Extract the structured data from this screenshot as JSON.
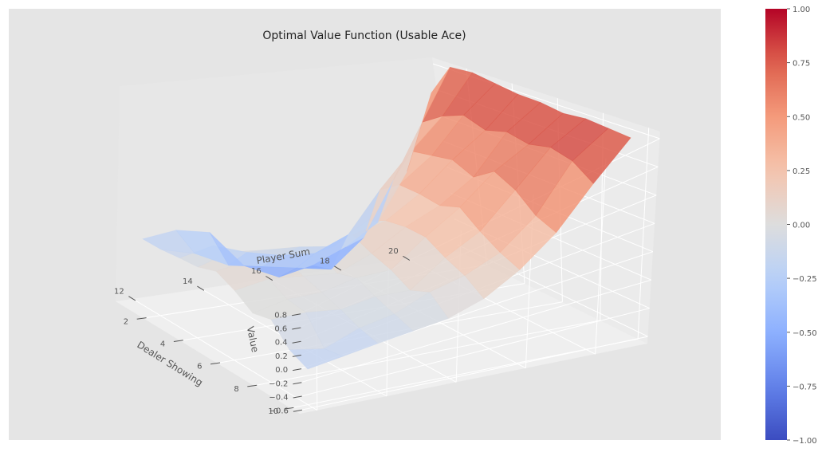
{
  "chart_data": {
    "type": "surface3d",
    "title": "Optimal Value Function (Usable Ace)",
    "xlabel": "Player Sum",
    "ylabel": "Dealer Showing",
    "zlabel": "Value",
    "xlim": [
      11.5,
      21.5
    ],
    "ylim": [
      0.5,
      10.5
    ],
    "zlim": [
      -0.65,
      0.85
    ],
    "xticks": [
      12,
      14,
      16,
      18,
      20
    ],
    "yticks": [
      2,
      4,
      6,
      8,
      10
    ],
    "zticks": [
      -0.6,
      -0.4,
      -0.2,
      0.0,
      0.2,
      0.4,
      0.6,
      0.8
    ],
    "ztick_labels": [
      "−0.6",
      "−0.4",
      "−0.2",
      "0.0",
      "0.2",
      "0.4",
      "0.6",
      "0.8"
    ],
    "x": [
      12,
      13,
      14,
      15,
      16,
      17,
      18,
      19,
      20,
      21
    ],
    "y": [
      1,
      2,
      3,
      4,
      5,
      6,
      7,
      8,
      9,
      10
    ],
    "z": [
      [
        -0.18,
        -0.15,
        -0.2,
        -0.48,
        -0.6,
        -0.55,
        -0.45,
        -0.3,
        0.05,
        0.62
      ],
      [
        -0.15,
        -0.22,
        -0.35,
        -0.4,
        -0.45,
        -0.5,
        -0.3,
        0.1,
        0.5,
        0.88
      ],
      [
        -0.1,
        -0.05,
        -0.15,
        -0.22,
        -0.25,
        -0.15,
        0.15,
        0.4,
        0.62,
        0.9
      ],
      [
        -0.05,
        0.02,
        -0.02,
        -0.05,
        -0.1,
        0.05,
        0.28,
        0.45,
        0.7,
        0.88
      ],
      [
        0.05,
        0.08,
        0.04,
        0.02,
        0.1,
        0.15,
        0.3,
        0.5,
        0.66,
        0.86
      ],
      [
        0.02,
        0.05,
        0.0,
        -0.05,
        0.05,
        0.2,
        0.3,
        0.45,
        0.72,
        0.86
      ],
      [
        -0.05,
        0.0,
        -0.02,
        0.03,
        0.02,
        0.22,
        0.38,
        0.58,
        0.7,
        0.84
      ],
      [
        0.05,
        0.02,
        -0.05,
        -0.02,
        -0.05,
        0.15,
        0.28,
        0.52,
        0.75,
        0.86
      ],
      [
        -0.12,
        -0.22,
        -0.1,
        -0.06,
        0.05,
        0.1,
        0.2,
        0.4,
        0.72,
        0.85
      ],
      [
        -0.18,
        -0.15,
        -0.12,
        -0.1,
        -0.08,
        0.0,
        0.15,
        0.35,
        0.62,
        0.84
      ]
    ],
    "colormap": "coolwarm",
    "colorbar": {
      "range": [
        -1.0,
        1.0
      ],
      "ticks": [
        -1.0,
        -0.75,
        -0.5,
        -0.25,
        0.0,
        0.25,
        0.5,
        0.75,
        1.0
      ],
      "tick_labels": [
        "−1.00",
        "−0.75",
        "−0.50",
        "−0.25",
        "0.00",
        "0.25",
        "0.50",
        "0.75",
        "1.00"
      ]
    },
    "grid": true,
    "colors": {
      "pane_back": "#e7e7e7",
      "pane_side": "#ebebeb",
      "pane_floor": "#efefef",
      "grid": "#ffffff",
      "figure_bg": "#ffffff",
      "axes_bg": "#e5e5e5"
    }
  }
}
